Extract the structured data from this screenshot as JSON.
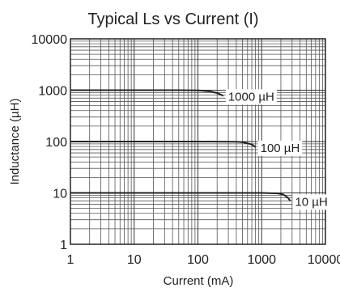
{
  "chart_data": {
    "type": "line",
    "title": "Typical Ls vs Current (I)",
    "xlabel": "Current (mA)",
    "ylabel": "Inductance (µH)",
    "x_scale": "log",
    "y_scale": "log",
    "xlim": [
      1,
      10000
    ],
    "ylim": [
      1,
      10000
    ],
    "xticks": [
      "1",
      "10",
      "100",
      "1000",
      "10000"
    ],
    "yticks": [
      "1",
      "10",
      "100",
      "1000",
      "10000"
    ],
    "grid": true,
    "legend": "none",
    "series": [
      {
        "name": "1000 µH",
        "x": [
          1,
          10,
          50,
          100,
          150,
          200,
          250
        ],
        "y": [
          1000,
          1000,
          1000,
          990,
          950,
          880,
          780
        ]
      },
      {
        "name": "100 µH",
        "x": [
          1,
          10,
          100,
          400,
          500,
          700,
          800
        ],
        "y": [
          100,
          100,
          100,
          99,
          97,
          88,
          78
        ]
      },
      {
        "name": "10 µH",
        "x": [
          1,
          10,
          100,
          1000,
          1800,
          2200,
          2600,
          2800
        ],
        "y": [
          10,
          10,
          10,
          10,
          9.8,
          9.3,
          8.0,
          7.0
        ]
      }
    ]
  }
}
